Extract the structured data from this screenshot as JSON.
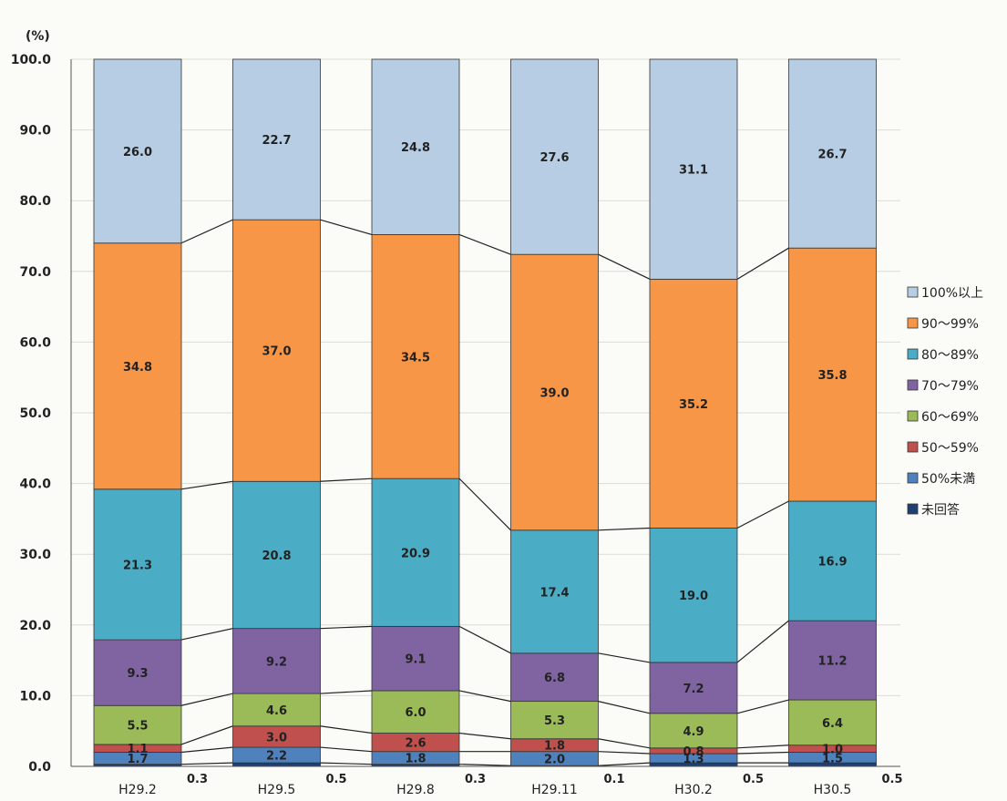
{
  "chart_data": {
    "type": "bar",
    "stacked": true,
    "connector_lines": true,
    "ylabel": "(%)",
    "ylim": [
      0,
      100
    ],
    "yticks": [
      "0.0",
      "10.0",
      "20.0",
      "30.0",
      "40.0",
      "50.0",
      "60.0",
      "70.0",
      "80.0",
      "90.0",
      "100.0"
    ],
    "grid": true,
    "legend_position": "right",
    "categories": [
      "H29.2",
      "H29.5",
      "H29.8",
      "H29.11",
      "H30.2",
      "H30.5"
    ],
    "series": [
      {
        "name": "未回答",
        "color": "#1f3f73",
        "values": [
          0.3,
          0.5,
          0.3,
          0.1,
          0.5,
          0.5
        ],
        "labels": [
          "0.3",
          "0.5",
          "0.3",
          "0.1",
          "0.5",
          "0.5"
        ]
      },
      {
        "name": "50%未満",
        "color": "#4f81bd",
        "values": [
          1.7,
          2.2,
          1.8,
          2.0,
          1.3,
          1.5
        ],
        "labels": [
          "1.7",
          "2.2",
          "1.8",
          "2.0",
          "1.3",
          "1.5"
        ]
      },
      {
        "name": "50～59%",
        "color": "#c0504d",
        "values": [
          1.1,
          3.0,
          2.6,
          1.8,
          0.8,
          1.0
        ],
        "labels": [
          "1.1",
          "3.0",
          "2.6",
          "1.8",
          "0.8",
          "1.0"
        ]
      },
      {
        "name": "60～69%",
        "color": "#9bbb59",
        "values": [
          5.5,
          4.6,
          6.0,
          5.3,
          4.9,
          6.4
        ],
        "labels": [
          "5.5",
          "4.6",
          "6.0",
          "5.3",
          "4.9",
          "6.4"
        ]
      },
      {
        "name": "70～79%",
        "color": "#8064a2",
        "values": [
          9.3,
          9.2,
          9.1,
          6.8,
          7.2,
          11.2
        ],
        "labels": [
          "9.3",
          "9.2",
          "9.1",
          "6.8",
          "7.2",
          "11.2"
        ]
      },
      {
        "name": "80～89%",
        "color": "#4bacc6",
        "values": [
          21.3,
          20.8,
          20.9,
          17.4,
          19.0,
          16.9
        ],
        "labels": [
          "21.3",
          "20.8",
          "20.9",
          "17.4",
          "19.0",
          "16.9"
        ]
      },
      {
        "name": "90～99%",
        "color": "#f79646",
        "values": [
          34.8,
          37.0,
          34.5,
          39.0,
          35.2,
          35.8
        ],
        "labels": [
          "34.8",
          "37.0",
          "34.5",
          "39.0",
          "35.2",
          "35.8"
        ]
      },
      {
        "name": "100%以上",
        "color": "#b7cde3",
        "values": [
          26.0,
          22.7,
          24.8,
          27.6,
          31.1,
          26.7
        ],
        "labels": [
          "26.0",
          "22.7",
          "24.8",
          "27.6",
          "31.1",
          "26.7"
        ]
      }
    ]
  }
}
